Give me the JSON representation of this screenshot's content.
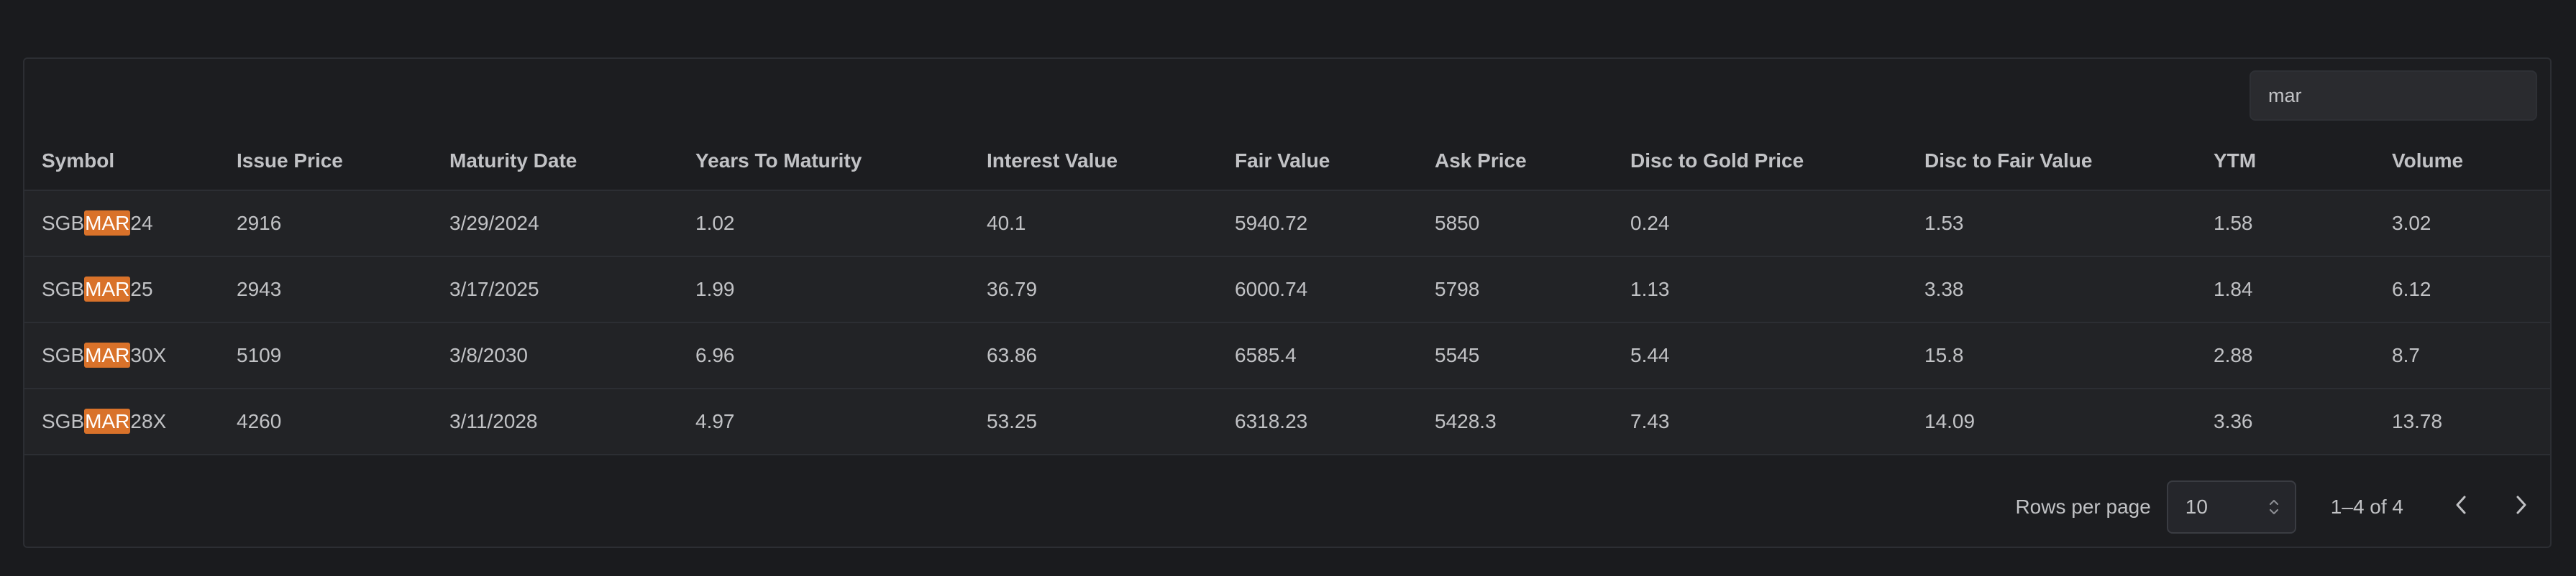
{
  "search": {
    "value": "mar"
  },
  "table": {
    "columns": [
      "Symbol",
      "Issue Price",
      "Maturity Date",
      "Years To Maturity",
      "Interest Value",
      "Fair Value",
      "Ask Price",
      "Disc to Gold Price",
      "Disc to Fair Value",
      "YTM",
      "Volume"
    ],
    "rows": [
      {
        "symbol_prefix": "SGB",
        "symbol_match": "MAR",
        "symbol_suffix": "24",
        "cells": [
          "2916",
          "3/29/2024",
          "1.02",
          "40.1",
          "5940.72",
          "5850",
          "0.24",
          "1.53",
          "1.58",
          "3.02"
        ]
      },
      {
        "symbol_prefix": "SGB",
        "symbol_match": "MAR",
        "symbol_suffix": "25",
        "cells": [
          "2943",
          "3/17/2025",
          "1.99",
          "36.79",
          "6000.74",
          "5798",
          "1.13",
          "3.38",
          "1.84",
          "6.12"
        ]
      },
      {
        "symbol_prefix": "SGB",
        "symbol_match": "MAR",
        "symbol_suffix": "30X",
        "cells": [
          "5109",
          "3/8/2030",
          "6.96",
          "63.86",
          "6585.4",
          "5545",
          "5.44",
          "15.8",
          "2.88",
          "8.7"
        ]
      },
      {
        "symbol_prefix": "SGB",
        "symbol_match": "MAR",
        "symbol_suffix": "28X",
        "cells": [
          "4260",
          "3/11/2028",
          "4.97",
          "53.25",
          "6318.23",
          "5428.3",
          "7.43",
          "14.09",
          "3.36",
          "13.78"
        ]
      }
    ]
  },
  "pagination": {
    "rows_per_page_label": "Rows per page",
    "rows_per_page_value": "10",
    "range_label": "1–4 of 4"
  },
  "icons": {
    "rows_stepper": "up-down-chevron-icon",
    "prev": "chevron-left-icon",
    "next": "chevron-right-icon"
  },
  "colors": {
    "highlight": "#d9722a",
    "background": "#1a1b1e",
    "row": "#222326"
  }
}
